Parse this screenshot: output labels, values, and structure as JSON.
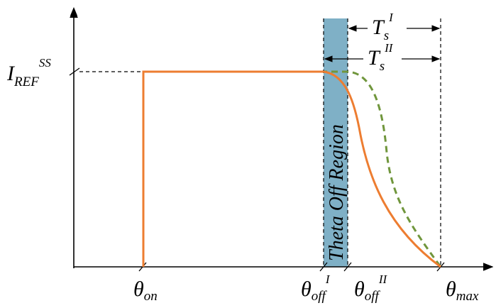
{
  "colors": {
    "current_solid": "#ED7D31",
    "current_dashed": "#70963C",
    "region_fill": "#7FB0C6",
    "axis": "#000000"
  },
  "labels": {
    "y_ref": {
      "main": "I",
      "sub": "REF",
      "sup": "SS"
    },
    "theta_on": {
      "main": "θ",
      "sub": "on"
    },
    "theta_off_1": {
      "main": "θ",
      "sub": "off",
      "sup": "I"
    },
    "theta_off_2": {
      "main": "θ",
      "sub": "off",
      "sup": "II"
    },
    "theta_max": {
      "main": "θ",
      "sub": "max"
    },
    "ts_1": {
      "main": "T",
      "sub": "s",
      "sup": "I"
    },
    "ts_2": {
      "main": "T",
      "sub": "s",
      "sup": "II"
    },
    "region": "Theta Off Region"
  },
  "icons": [
    "x-axis-arrow-icon",
    "y-axis-arrow-icon",
    "dimension-arrow-icon"
  ]
}
